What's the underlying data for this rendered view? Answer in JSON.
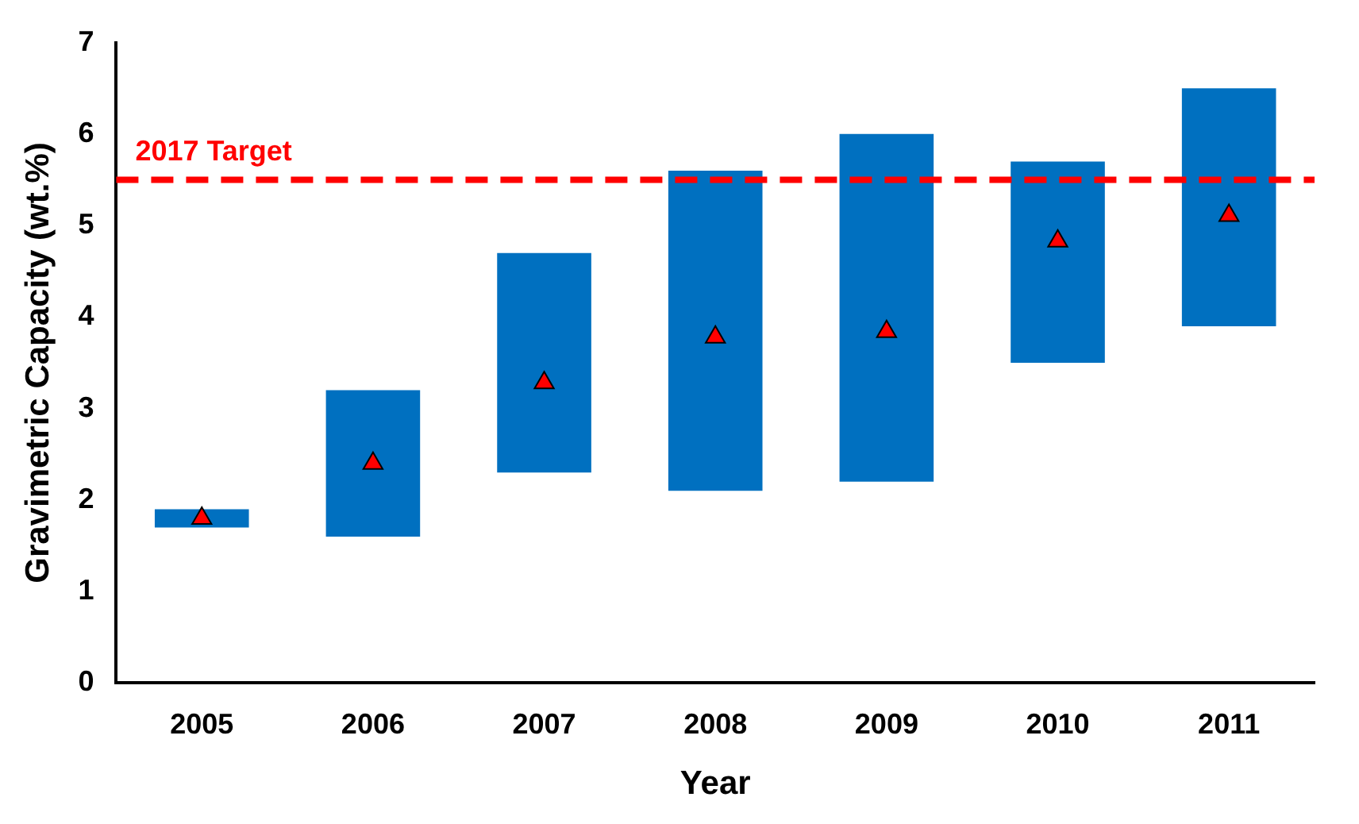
{
  "chart_data": {
    "type": "bar",
    "xlabel": "Year",
    "ylabel": "Gravimetric Capacity (wt.%)",
    "categories": [
      "2005",
      "2006",
      "2007",
      "2008",
      "2009",
      "2010",
      "2011"
    ],
    "series": [
      {
        "color": "#0070c0",
        "base": [
          1.7,
          1.6,
          2.3,
          2.1,
          2.2,
          3.5,
          3.9
        ],
        "values": [
          0.2,
          1.6,
          2.4,
          3.5,
          3.8,
          2.2,
          2.6
        ]
      },
      {
        "type": "scatter",
        "color": "#ff0000",
        "marker": "triangle",
        "values": [
          1.8,
          2.4,
          3.28,
          3.78,
          3.84,
          4.83,
          5.11
        ]
      }
    ],
    "ylim": [
      0,
      7
    ],
    "yticks": [
      0,
      1,
      2,
      3,
      4,
      5,
      6,
      7
    ],
    "grid": false,
    "legend": false,
    "ref_lines": [
      {
        "axis": "y",
        "value": 5.5,
        "label": "2017 Target",
        "color": "#ff0000",
        "line_style": "dashed"
      }
    ]
  }
}
